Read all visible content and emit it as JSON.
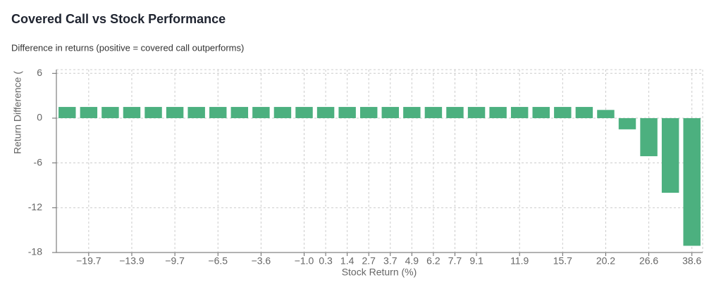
{
  "chart_data": {
    "type": "bar",
    "title": "Covered Call vs Stock Performance",
    "subtitle": "Difference in returns (positive = covered call outperforms)",
    "x_label": "Stock Return (%)",
    "y_label": "Return Difference (",
    "categories": [
      null,
      "−19.7",
      null,
      "−13.9",
      null,
      "−9.7",
      null,
      "−6.5",
      null,
      "−3.6",
      null,
      "−1.0",
      "0.3",
      "1.4",
      "2.7",
      "3.7",
      "4.9",
      "6.2",
      "7.7",
      "9.1",
      null,
      "11.9",
      null,
      "15.7",
      null,
      "20.2",
      null,
      "26.6",
      null,
      "38.6"
    ],
    "values": [
      1.5,
      1.5,
      1.5,
      1.5,
      1.5,
      1.5,
      1.5,
      1.5,
      1.5,
      1.5,
      1.5,
      1.5,
      1.5,
      1.5,
      1.5,
      1.5,
      1.5,
      1.5,
      1.5,
      1.5,
      1.5,
      1.5,
      1.5,
      1.5,
      1.5,
      1.1,
      -1.5,
      -5.1,
      -10.0,
      -17.1
    ],
    "color": "#4cb07f",
    "ylim": [
      -18,
      6.5
    ],
    "yticks": [
      -18,
      -12,
      -6,
      0,
      6
    ],
    "grid": true
  }
}
